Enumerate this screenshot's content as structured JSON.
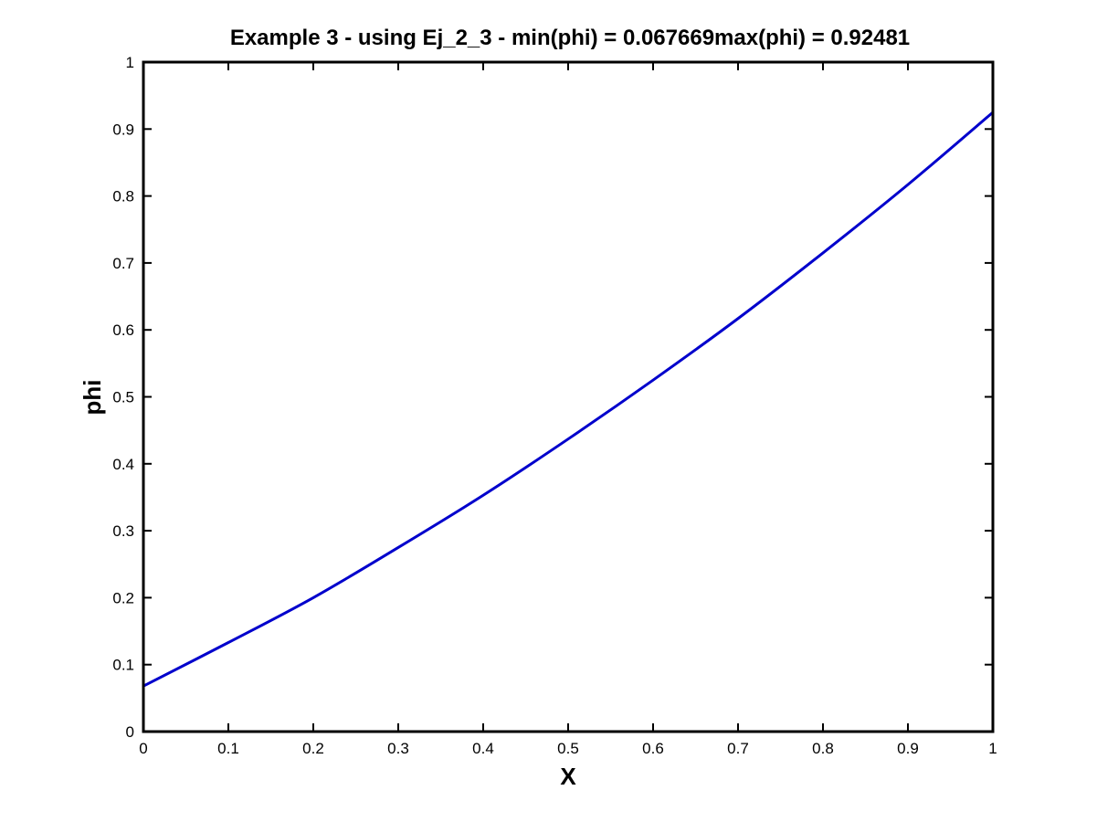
{
  "chart_data": {
    "type": "line",
    "title": "Example 3 - using Ej_2_3 - min(phi) = 0.067669max(phi) = 0.92481",
    "xlabel": "X",
    "ylabel": "phi",
    "xlim": [
      0,
      1
    ],
    "ylim": [
      0,
      1
    ],
    "x_ticks": [
      0,
      0.1,
      0.2,
      0.3,
      0.4,
      0.5,
      0.6,
      0.7,
      0.8,
      0.9,
      1
    ],
    "y_ticks": [
      0,
      0.1,
      0.2,
      0.3,
      0.4,
      0.5,
      0.6,
      0.7,
      0.8,
      0.9,
      1
    ],
    "x_tick_labels": [
      "0",
      "0.1",
      "0.2",
      "0.3",
      "0.4",
      "0.5",
      "0.6",
      "0.7",
      "0.8",
      "0.9",
      "1"
    ],
    "y_tick_labels": [
      "0",
      "0.1",
      "0.2",
      "0.3",
      "0.4",
      "0.5",
      "0.6",
      "0.7",
      "0.8",
      "0.9",
      "1"
    ],
    "grid": false,
    "series": [
      {
        "color": "#0000cc",
        "x": [
          0,
          0.1,
          0.2,
          0.3,
          0.4,
          0.5,
          0.6,
          0.7,
          0.8,
          0.9,
          1
        ],
        "y": [
          0.068,
          0.133,
          0.2,
          0.275,
          0.353,
          0.437,
          0.525,
          0.617,
          0.715,
          0.817,
          0.925
        ]
      }
    ]
  }
}
